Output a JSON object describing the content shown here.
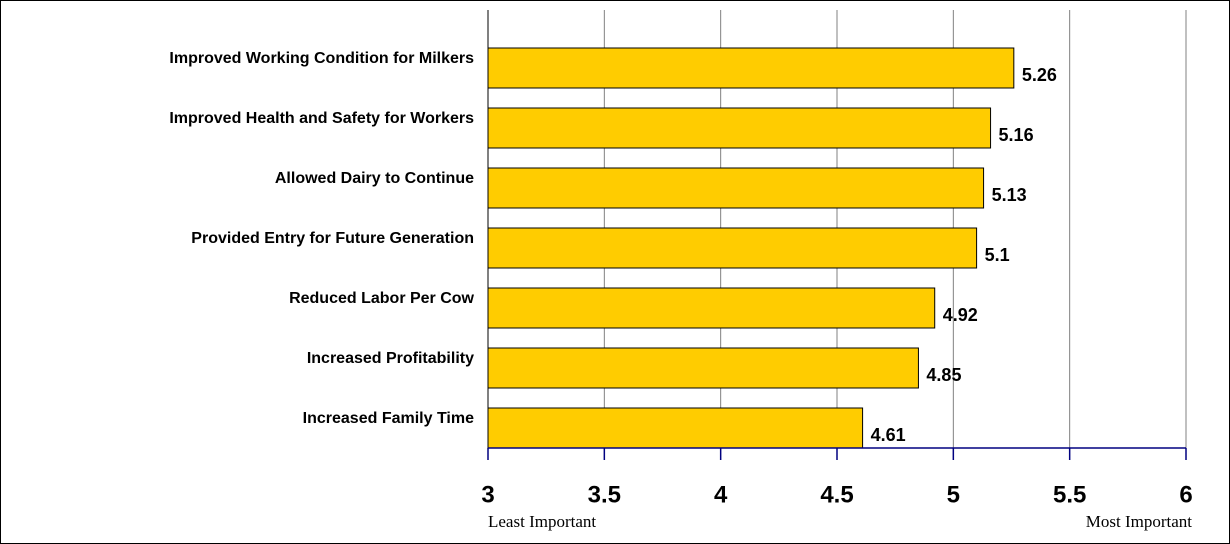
{
  "chart_data": {
    "type": "bar",
    "orientation": "horizontal",
    "categories": [
      "Improved Working Condition for Milkers",
      "Improved Health and Safety for Workers",
      "Allowed Dairy to Continue",
      "Provided Entry for Future Generation",
      "Reduced Labor Per Cow",
      "Increased Profitability",
      "Increased Family Time"
    ],
    "values": [
      5.26,
      5.16,
      5.13,
      5.1,
      4.92,
      4.85,
      4.61
    ],
    "color": "#ffcc00",
    "xlim": [
      3,
      6
    ],
    "xticks": [
      3,
      3.5,
      4,
      4.5,
      5,
      5.5,
      6
    ],
    "grid": true,
    "annotations": [
      "Least Important",
      "Most Important"
    ]
  }
}
